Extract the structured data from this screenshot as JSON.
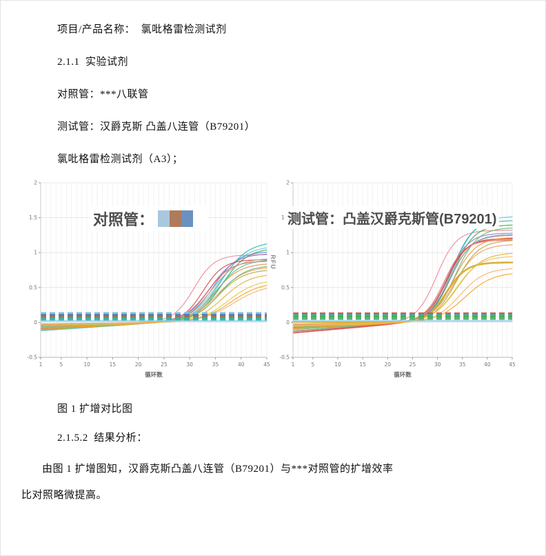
{
  "document": {
    "line_project": "项目/产品名称：  氯吡格雷检测试剂",
    "line_section1": "2.1.1  实验试剂",
    "line_control": "对照管：***八联管",
    "line_test": "测试管：汉爵克斯 凸盖八连管（B79201）",
    "line_reagent": "氯吡格雷检测试剂（A3）；",
    "figure_caption": "图 1 扩增对比图",
    "line_section2": "2.1.5.2  结果分析：",
    "analysis_line1": "由图 1 扩增图知，汉爵克斯凸盖八连管（B79201）与***对照管的扩增效率",
    "analysis_line2": "比对照略微提高。"
  },
  "chart_data": [
    {
      "type": "line",
      "title": "对照管：",
      "title_redacted": true,
      "redaction_colors": [
        "#a9c8de",
        "#b07a5c",
        "#6a92c0",
        "#ffffff"
      ],
      "xlabel": "循环数",
      "ylabel": "",
      "xlim": [
        1,
        45
      ],
      "ylim": [
        -0.5,
        2
      ],
      "x_ticks": [
        1,
        5,
        10,
        15,
        20,
        25,
        30,
        35,
        40,
        45
      ],
      "y_ticks": [
        2,
        1.5,
        1,
        0.5,
        0,
        -0.5
      ],
      "grid": true,
      "thresholds": [
        {
          "color": "#79c4e8",
          "y": 0.13,
          "dashed": true
        },
        {
          "color": "#5a6fb8",
          "y": 0.103,
          "dashed": true
        },
        {
          "color": "#d9534f",
          "y": 0.085,
          "dashed": true
        },
        {
          "color": "#3fae52",
          "y": 0.066,
          "dashed": true
        },
        {
          "color": "#2fb5a6",
          "y": 0.048,
          "dashed": true
        },
        {
          "color": "#8ed0ee",
          "y": 0.02,
          "dashed": false
        }
      ],
      "series": [
        {
          "color": "#ef8898",
          "start": -0.02,
          "final": 0.97,
          "mid": 30.8,
          "k": 0.5
        },
        {
          "color": "#2fb5a6",
          "start": -0.1,
          "final": 1.16,
          "mid": 36.0,
          "k": 0.38
        },
        {
          "color": "#6fc5ea",
          "start": -0.12,
          "final": 1.1,
          "mid": 35.5,
          "k": 0.37
        },
        {
          "color": "#44a94f",
          "start": -0.08,
          "final": 1.07,
          "mid": 36.2,
          "k": 0.4
        },
        {
          "color": "#5b8fd4",
          "start": -0.06,
          "final": 1.02,
          "mid": 34.6,
          "k": 0.42
        },
        {
          "color": "#8f83c5",
          "start": -0.05,
          "final": 0.99,
          "mid": 34.0,
          "k": 0.4
        },
        {
          "color": "#d94a4c",
          "start": -0.04,
          "final": 0.9,
          "mid": 32.6,
          "k": 0.5
        },
        {
          "color": "#e4625c",
          "start": -0.09,
          "final": 0.88,
          "mid": 33.5,
          "k": 0.45
        },
        {
          "color": "#c9a489",
          "start": -0.03,
          "final": 0.92,
          "mid": 34.2,
          "k": 0.4
        },
        {
          "color": "#f0923f",
          "start": -0.07,
          "final": 0.85,
          "mid": 34.8,
          "k": 0.4
        },
        {
          "color": "#ef9f6d",
          "start": -0.05,
          "final": 0.8,
          "mid": 35.4,
          "k": 0.38
        },
        {
          "color": "#63b96a",
          "start": -0.11,
          "final": 0.82,
          "mid": 35.8,
          "k": 0.4
        },
        {
          "color": "#45c0b0",
          "start": -0.06,
          "final": 0.9,
          "mid": 35.2,
          "k": 0.42
        },
        {
          "color": "#b7a839",
          "start": -0.04,
          "final": 0.76,
          "mid": 35.5,
          "k": 0.4
        },
        {
          "color": "#e0b32f",
          "start": -0.08,
          "final": 0.7,
          "mid": 36.5,
          "k": 0.38
        },
        {
          "color": "#e6c84a",
          "start": -0.05,
          "final": 0.62,
          "mid": 37.5,
          "k": 0.36
        },
        {
          "color": "#f3b56b",
          "start": -0.03,
          "final": 0.55,
          "mid": 38.5,
          "k": 0.32
        },
        {
          "color": "#f5a623",
          "start": -0.1,
          "final": 0.58,
          "mid": 38.0,
          "k": 0.34
        },
        {
          "color": "#7ec8e8",
          "start": 0.02,
          "flat": true
        }
      ]
    },
    {
      "type": "line",
      "title": "测试管：凸盖汉爵克斯管(B79201)",
      "title_redacted": false,
      "xlabel": "循环数",
      "ylabel": "RFU",
      "xlim": [
        1,
        45
      ],
      "ylim": [
        -0.5,
        2
      ],
      "x_ticks": [
        1,
        5,
        10,
        15,
        20,
        25,
        30,
        35,
        40,
        45
      ],
      "y_ticks": [
        2,
        1.5,
        1,
        0.5,
        0,
        -0.5
      ],
      "grid": true,
      "thresholds": [
        {
          "color": "#d9534f",
          "y": 0.125,
          "dashed": true
        },
        {
          "color": "#2fb5a6",
          "y": 0.1,
          "dashed": true
        },
        {
          "color": "#3fae52",
          "y": 0.076,
          "dashed": true
        },
        {
          "color": "#57b36a",
          "y": 0.055,
          "dashed": true
        },
        {
          "color": "#8ed0ee",
          "y": 0.02,
          "dashed": false
        }
      ],
      "series": [
        {
          "color": "#ef8898",
          "start": -0.03,
          "final": 1.32,
          "mid": 29.8,
          "k": 0.5
        },
        {
          "color": "#6fc5ea",
          "start": -0.08,
          "final": 1.52,
          "mid": 33.2,
          "k": 0.45
        },
        {
          "color": "#2fb5a6",
          "start": -0.1,
          "final": 1.46,
          "mid": 32.8,
          "k": 0.48
        },
        {
          "color": "#44a94f",
          "start": -0.07,
          "final": 1.4,
          "mid": 33.0,
          "k": 0.46
        },
        {
          "color": "#63b96a",
          "start": -0.12,
          "final": 1.36,
          "mid": 33.6,
          "k": 0.45
        },
        {
          "color": "#8f83c5",
          "start": -0.05,
          "final": 1.28,
          "mid": 32.0,
          "k": 0.48
        },
        {
          "color": "#5b8fd4",
          "start": -0.06,
          "final": 1.26,
          "mid": 32.6,
          "k": 0.46
        },
        {
          "color": "#d94a4c",
          "start": -0.15,
          "final": 1.2,
          "mid": 31.8,
          "k": 0.5,
          "width": 1.8
        },
        {
          "color": "#e4625c",
          "start": -0.13,
          "final": 1.18,
          "mid": 31.4,
          "k": 0.5
        },
        {
          "color": "#c9a489",
          "start": -0.04,
          "final": 1.25,
          "mid": 32.4,
          "k": 0.45
        },
        {
          "color": "#f0923f",
          "start": -0.06,
          "final": 1.22,
          "mid": 33.2,
          "k": 0.44
        },
        {
          "color": "#ef9f6d",
          "start": -0.05,
          "final": 1.12,
          "mid": 33.4,
          "k": 0.42
        },
        {
          "color": "#b7a839",
          "start": -0.08,
          "final": 1.18,
          "mid": 33.8,
          "k": 0.44
        },
        {
          "color": "#d4a928",
          "start": 0.01,
          "final": 0.86,
          "mid": 31.8,
          "k": 0.5,
          "width": 2.6
        },
        {
          "color": "#e0b32f",
          "start": -0.02,
          "final": 1.0,
          "mid": 34.0,
          "k": 0.4
        },
        {
          "color": "#e6c84a",
          "start": -0.06,
          "final": 0.95,
          "mid": 33.6,
          "k": 0.42
        },
        {
          "color": "#f3b56b",
          "start": -0.04,
          "final": 0.78,
          "mid": 34.5,
          "k": 0.4
        },
        {
          "color": "#f5a623",
          "start": -0.09,
          "final": 0.72,
          "mid": 35.5,
          "k": 0.36
        },
        {
          "color": "#7ec8e8",
          "start": 0.02,
          "flat": true
        }
      ]
    }
  ]
}
